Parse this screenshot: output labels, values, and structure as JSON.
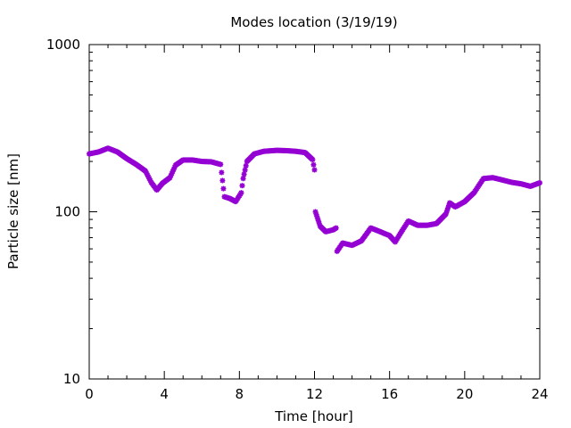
{
  "chart_data": {
    "type": "scatter",
    "title": "Modes location (3/19/19)",
    "xlabel": "Time [hour]",
    "ylabel": "Particle size [nm]",
    "xlim": [
      0,
      24
    ],
    "ylim": [
      10,
      1000
    ],
    "yscale": "log",
    "grid": false,
    "marker_color": "#9400d3",
    "x_ticks": [
      {
        "value": 0,
        "label": "0"
      },
      {
        "value": 4,
        "label": "4"
      },
      {
        "value": 8,
        "label": "8"
      },
      {
        "value": 12,
        "label": "12"
      },
      {
        "value": 16,
        "label": "16"
      },
      {
        "value": 20,
        "label": "20"
      },
      {
        "value": 24,
        "label": "24"
      }
    ],
    "y_ticks": [
      {
        "value": 10,
        "label": "10"
      },
      {
        "value": 100,
        "label": "100"
      },
      {
        "value": 1000,
        "label": "1000"
      }
    ],
    "key_points": [
      [
        0.0,
        222
      ],
      [
        0.5,
        228
      ],
      [
        1.0,
        240
      ],
      [
        1.5,
        228
      ],
      [
        2.0,
        208
      ],
      [
        2.5,
        192
      ],
      [
        3.0,
        175
      ],
      [
        3.3,
        150
      ],
      [
        3.6,
        135
      ],
      [
        3.9,
        148
      ],
      [
        4.3,
        160
      ],
      [
        4.6,
        190
      ],
      [
        5.0,
        204
      ],
      [
        5.5,
        204
      ],
      [
        6.0,
        200
      ],
      [
        6.5,
        199
      ],
      [
        7.0,
        192
      ],
      [
        7.2,
        123
      ],
      [
        7.5,
        120
      ],
      [
        7.8,
        115
      ],
      [
        8.1,
        130
      ],
      [
        8.2,
        158
      ],
      [
        8.4,
        200
      ],
      [
        8.8,
        222
      ],
      [
        9.3,
        230
      ],
      [
        10.0,
        233
      ],
      [
        10.5,
        232
      ],
      [
        11.0,
        230
      ],
      [
        11.5,
        226
      ],
      [
        11.9,
        205
      ],
      [
        12.0,
        178
      ],
      [
        12.05,
        100
      ],
      [
        12.3,
        82
      ],
      [
        12.6,
        76
      ],
      [
        13.0,
        78
      ],
      [
        13.15,
        80
      ],
      [
        13.2,
        58
      ],
      [
        13.5,
        65
      ],
      [
        14.0,
        63
      ],
      [
        14.5,
        67
      ],
      [
        15.0,
        80
      ],
      [
        15.5,
        76
      ],
      [
        16.0,
        72
      ],
      [
        16.3,
        66
      ],
      [
        16.6,
        75
      ],
      [
        17.0,
        88
      ],
      [
        17.5,
        83
      ],
      [
        18.0,
        83
      ],
      [
        18.5,
        85
      ],
      [
        19.0,
        97
      ],
      [
        19.2,
        113
      ],
      [
        19.5,
        107
      ],
      [
        20.0,
        115
      ],
      [
        20.5,
        130
      ],
      [
        21.0,
        158
      ],
      [
        21.5,
        160
      ],
      [
        22.0,
        155
      ],
      [
        22.5,
        150
      ],
      [
        23.0,
        147
      ],
      [
        23.5,
        142
      ],
      [
        24.0,
        149
      ]
    ]
  }
}
